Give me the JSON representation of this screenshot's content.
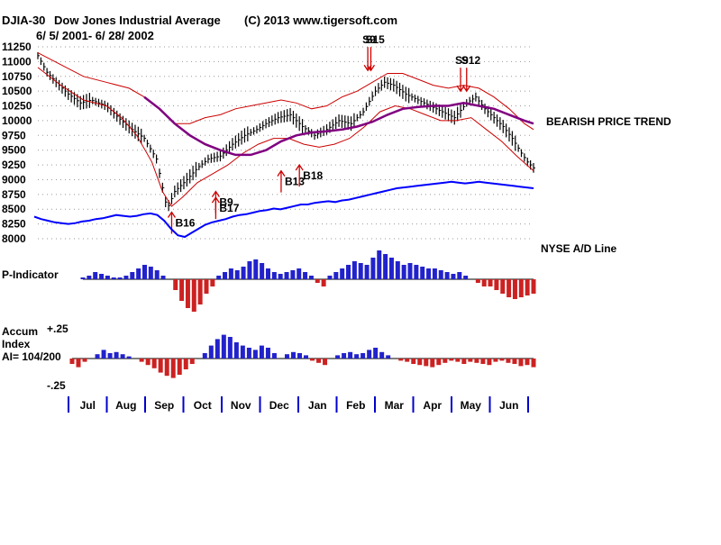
{
  "header": {
    "symbol": "DJIA-30",
    "name": "Dow Jones Industrial Average",
    "copyright": "(C) 2013 www.tigersoft.com",
    "date_range": "6/ 5/ 2001- 6/ 28/ 2002"
  },
  "labels": {
    "bearish_trend": "BEARISH PRICE TREND",
    "nyse_ad": "NYSE A/D Line",
    "p_indicator": "P-Indicator",
    "accum_line1": "Accum",
    "accum_line2": "Index",
    "accum_line3": "AI= 104/200",
    "accum_top": "+.25",
    "accum_bottom": "-.25"
  },
  "colors": {
    "price_bar": "#000000",
    "band": "#cc0000",
    "ma": "#800080",
    "ad_line": "#0000ff",
    "positive": "#2222cc",
    "negative": "#cc2222",
    "grid": "#999999",
    "axis": "#0000cc"
  },
  "chart_data": {
    "type": "line",
    "title": "DJIA-30 Dow Jones Industrial Average",
    "x_months": [
      "Jul",
      "Aug",
      "Sep",
      "Oct",
      "Nov",
      "Dec",
      "Jan",
      "Feb",
      "Mar",
      "Apr",
      "May",
      "Jun"
    ],
    "price_axis": {
      "ticks": [
        11250,
        11000,
        10750,
        10500,
        10250,
        10000,
        9750,
        9500,
        9250,
        9000,
        8750,
        8500,
        8250,
        8000
      ],
      "ylim": [
        8000,
        11250
      ]
    },
    "price_series": {
      "name": "DJIA close (approx.)",
      "points": [
        [
          0,
          11100
        ],
        [
          6,
          10820
        ],
        [
          12,
          10650
        ],
        [
          20,
          10450
        ],
        [
          28,
          10300
        ],
        [
          35,
          10350
        ],
        [
          45,
          10250
        ],
        [
          55,
          10000
        ],
        [
          62,
          9850
        ],
        [
          70,
          9700
        ],
        [
          78,
          9350
        ],
        [
          85,
          8500
        ],
        [
          90,
          8800
        ],
        [
          98,
          9000
        ],
        [
          105,
          9200
        ],
        [
          112,
          9350
        ],
        [
          120,
          9400
        ],
        [
          128,
          9600
        ],
        [
          136,
          9750
        ],
        [
          144,
          9850
        ],
        [
          150,
          9950
        ],
        [
          158,
          10050
        ],
        [
          166,
          10100
        ],
        [
          174,
          9900
        ],
        [
          182,
          9750
        ],
        [
          190,
          9850
        ],
        [
          198,
          10000
        ],
        [
          206,
          9950
        ],
        [
          214,
          10150
        ],
        [
          222,
          10500
        ],
        [
          228,
          10650
        ],
        [
          234,
          10600
        ],
        [
          242,
          10450
        ],
        [
          250,
          10350
        ],
        [
          258,
          10250
        ],
        [
          266,
          10150
        ],
        [
          274,
          10050
        ],
        [
          282,
          10300
        ],
        [
          288,
          10400
        ],
        [
          294,
          10200
        ],
        [
          300,
          10050
        ],
        [
          306,
          9900
        ],
        [
          312,
          9700
        ],
        [
          318,
          9450
        ],
        [
          322,
          9300
        ],
        [
          326,
          9200
        ]
      ]
    },
    "ma_series": {
      "name": "Moving average",
      "points": [
        [
          70,
          10400
        ],
        [
          80,
          10200
        ],
        [
          90,
          9950
        ],
        [
          100,
          9750
        ],
        [
          110,
          9600
        ],
        [
          120,
          9500
        ],
        [
          130,
          9420
        ],
        [
          140,
          9420
        ],
        [
          150,
          9500
        ],
        [
          160,
          9650
        ],
        [
          170,
          9750
        ],
        [
          180,
          9800
        ],
        [
          190,
          9820
        ],
        [
          200,
          9850
        ],
        [
          210,
          9900
        ],
        [
          220,
          9980
        ],
        [
          230,
          10100
        ],
        [
          240,
          10200
        ],
        [
          250,
          10230
        ],
        [
          260,
          10250
        ],
        [
          270,
          10250
        ],
        [
          280,
          10300
        ],
        [
          290,
          10250
        ],
        [
          300,
          10200
        ],
        [
          310,
          10100
        ],
        [
          320,
          10000
        ],
        [
          326,
          9950
        ]
      ]
    },
    "upper_band": {
      "name": "Upper band",
      "points": [
        [
          0,
          11150
        ],
        [
          15,
          10950
        ],
        [
          30,
          10750
        ],
        [
          45,
          10650
        ],
        [
          60,
          10550
        ],
        [
          70,
          10400
        ],
        [
          80,
          10200
        ],
        [
          90,
          9950
        ],
        [
          100,
          9950
        ],
        [
          110,
          10050
        ],
        [
          120,
          10100
        ],
        [
          130,
          10200
        ],
        [
          140,
          10250
        ],
        [
          150,
          10300
        ],
        [
          160,
          10350
        ],
        [
          170,
          10300
        ],
        [
          180,
          10200
        ],
        [
          190,
          10250
        ],
        [
          200,
          10400
        ],
        [
          210,
          10500
        ],
        [
          220,
          10650
        ],
        [
          230,
          10800
        ],
        [
          240,
          10800
        ],
        [
          250,
          10700
        ],
        [
          260,
          10600
        ],
        [
          270,
          10550
        ],
        [
          280,
          10600
        ],
        [
          290,
          10550
        ],
        [
          300,
          10400
        ],
        [
          310,
          10200
        ],
        [
          320,
          9950
        ],
        [
          326,
          9850
        ]
      ]
    },
    "lower_band": {
      "name": "Lower band",
      "points": [
        [
          0,
          10900
        ],
        [
          15,
          10600
        ],
        [
          30,
          10350
        ],
        [
          45,
          10250
        ],
        [
          55,
          10050
        ],
        [
          65,
          9750
        ],
        [
          75,
          9300
        ],
        [
          82,
          8800
        ],
        [
          88,
          8550
        ],
        [
          95,
          8700
        ],
        [
          105,
          8950
        ],
        [
          115,
          9100
        ],
        [
          125,
          9250
        ],
        [
          135,
          9450
        ],
        [
          145,
          9600
        ],
        [
          155,
          9700
        ],
        [
          165,
          9700
        ],
        [
          175,
          9600
        ],
        [
          185,
          9550
        ],
        [
          195,
          9600
        ],
        [
          205,
          9700
        ],
        [
          215,
          9900
        ],
        [
          225,
          10150
        ],
        [
          235,
          10250
        ],
        [
          245,
          10200
        ],
        [
          255,
          10100
        ],
        [
          265,
          10000
        ],
        [
          275,
          10000
        ],
        [
          285,
          10050
        ],
        [
          295,
          9850
        ],
        [
          305,
          9650
        ],
        [
          315,
          9400
        ],
        [
          326,
          9150
        ]
      ]
    },
    "signals": [
      {
        "label": "S9",
        "dir": "down",
        "x": 217,
        "value": 10850
      },
      {
        "label": "S15",
        "dir": "down",
        "x": 219,
        "value": 10850
      },
      {
        "label": "S9",
        "dir": "down",
        "x": 278,
        "value": 10500
      },
      {
        "label": "S12",
        "dir": "down",
        "x": 282,
        "value": 10500
      },
      {
        "label": "B16",
        "dir": "up",
        "x": 88,
        "value": 8450
      },
      {
        "label": "B9",
        "dir": "up",
        "x": 117,
        "value": 8800
      },
      {
        "label": "B17",
        "dir": "up",
        "x": 117,
        "value": 8700
      },
      {
        "label": "B13",
        "dir": "up",
        "x": 160,
        "value": 9150
      },
      {
        "label": "B18",
        "dir": "up",
        "x": 172,
        "value": 9250
      }
    ],
    "ad_line": {
      "name": "NYSE A/D Line",
      "values": [
        0.55,
        0.52,
        0.5,
        0.48,
        0.47,
        0.46,
        0.47,
        0.49,
        0.5,
        0.52,
        0.53,
        0.55,
        0.57,
        0.56,
        0.55,
        0.56,
        0.58,
        0.59,
        0.57,
        0.5,
        0.4,
        0.32,
        0.3,
        0.35,
        0.4,
        0.45,
        0.48,
        0.5,
        0.52,
        0.55,
        0.57,
        0.58,
        0.6,
        0.62,
        0.63,
        0.65,
        0.64,
        0.66,
        0.68,
        0.7,
        0.7,
        0.72,
        0.73,
        0.74,
        0.73,
        0.75,
        0.76,
        0.78,
        0.8,
        0.82,
        0.84,
        0.86,
        0.88,
        0.9,
        0.91,
        0.92,
        0.93,
        0.94,
        0.95,
        0.96,
        0.97,
        0.98,
        0.97,
        0.96,
        0.97,
        0.98,
        0.97,
        0.96,
        0.95,
        0.94,
        0.93,
        0.92,
        0.91,
        0.9
      ]
    },
    "p_indicator": {
      "name": "P-Indicator",
      "values": [
        0.05,
        0.1,
        0.2,
        0.15,
        0.1,
        0.05,
        0.05,
        0.1,
        0.2,
        0.3,
        0.4,
        0.35,
        0.25,
        0.1,
        0.0,
        -0.3,
        -0.6,
        -0.8,
        -0.9,
        -0.7,
        -0.4,
        -0.2,
        0.1,
        0.2,
        0.3,
        0.25,
        0.35,
        0.5,
        0.55,
        0.45,
        0.3,
        0.2,
        0.15,
        0.2,
        0.25,
        0.3,
        0.2,
        0.1,
        -0.1,
        -0.2,
        0.1,
        0.2,
        0.3,
        0.4,
        0.5,
        0.45,
        0.4,
        0.6,
        0.8,
        0.7,
        0.6,
        0.5,
        0.4,
        0.45,
        0.4,
        0.35,
        0.3,
        0.3,
        0.25,
        0.2,
        0.15,
        0.2,
        0.1,
        0.0,
        -0.1,
        -0.2,
        -0.2,
        -0.3,
        -0.4,
        -0.5,
        -0.55,
        -0.5,
        -0.45,
        -0.4
      ]
    },
    "accum_index": {
      "name": "Accumulation Index",
      "ylim": [
        -0.25,
        0.25
      ],
      "values": [
        -0.05,
        -0.08,
        -0.03,
        0.0,
        0.04,
        0.08,
        0.05,
        0.06,
        0.04,
        0.02,
        0.0,
        -0.03,
        -0.06,
        -0.09,
        -0.13,
        -0.16,
        -0.18,
        -0.15,
        -0.1,
        -0.05,
        0.0,
        0.05,
        0.12,
        0.18,
        0.22,
        0.2,
        0.15,
        0.12,
        0.1,
        0.08,
        0.12,
        0.1,
        0.05,
        0.0,
        0.04,
        0.06,
        0.05,
        0.03,
        -0.02,
        -0.04,
        -0.06,
        0.0,
        0.03,
        0.05,
        0.06,
        0.04,
        0.05,
        0.08,
        0.1,
        0.06,
        0.03,
        0.0,
        -0.02,
        -0.03,
        -0.05,
        -0.06,
        -0.07,
        -0.08,
        -0.06,
        -0.04,
        -0.02,
        -0.03,
        -0.05,
        -0.03,
        -0.04,
        -0.05,
        -0.06,
        -0.03,
        -0.02,
        -0.04,
        -0.05,
        -0.07,
        -0.06,
        -0.08
      ]
    }
  }
}
